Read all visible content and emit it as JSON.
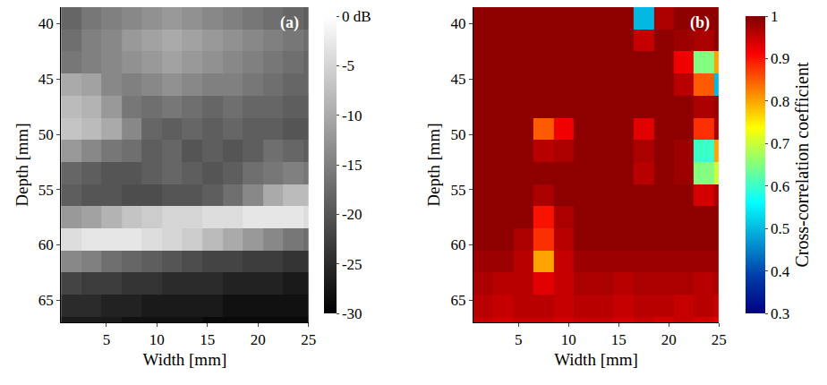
{
  "chart_data": [
    {
      "type": "heatmap",
      "color": "gray",
      "annotations": [
        "(a)"
      ],
      "x_label": "Width [mm]",
      "y_label": "Depth [mm]",
      "xlim": [
        0.5,
        25
      ],
      "ylim": [
        67,
        38.5
      ],
      "xticks": [
        5,
        10,
        15,
        20,
        25
      ],
      "yticks": [
        40,
        45,
        50,
        55,
        60,
        65
      ],
      "x": [
        0.5,
        2.5,
        4.5,
        6.5,
        8.5,
        10.5,
        12.5,
        14.5,
        16.5,
        18.5,
        20.5,
        22.5,
        24.5,
        25
      ],
      "y": [
        38.5,
        40.5,
        42.5,
        44.5,
        46.5,
        48.5,
        50.5,
        52.5,
        54.5,
        56.5,
        58.5,
        60.5,
        62.5,
        64.5,
        66.5,
        67
      ],
      "z": [
        [
          -18,
          -16,
          -15,
          -14,
          -13,
          -12,
          -13,
          -14,
          -15,
          -16,
          -17,
          -18,
          -19
        ],
        [
          -17,
          -15,
          -14,
          -12,
          -11,
          -10,
          -11,
          -12,
          -13,
          -14,
          -15,
          -16,
          -17
        ],
        [
          -16,
          -15,
          -14,
          -13,
          -12,
          -11,
          -12,
          -13,
          -14,
          -15,
          -16,
          -17,
          -18
        ],
        [
          -10,
          -11,
          -14,
          -15,
          -14,
          -13,
          -14,
          -15,
          -15,
          -16,
          -17,
          -18,
          -18
        ],
        [
          -8,
          -9,
          -12,
          -16,
          -17,
          -16,
          -17,
          -18,
          -17,
          -18,
          -18,
          -19,
          -19
        ],
        [
          -7,
          -8,
          -10,
          -14,
          -18,
          -19,
          -18,
          -19,
          -18,
          -19,
          -19,
          -20,
          -20
        ],
        [
          -12,
          -14,
          -16,
          -17,
          -19,
          -18,
          -20,
          -19,
          -20,
          -19,
          -17,
          -18,
          -19
        ],
        [
          -18,
          -19,
          -20,
          -20,
          -19,
          -18,
          -19,
          -20,
          -19,
          -17,
          -16,
          -15,
          -16
        ],
        [
          -19,
          -20,
          -20,
          -21,
          -21,
          -20,
          -20,
          -19,
          -17,
          -14,
          -10,
          -8,
          -8
        ],
        [
          -12,
          -11,
          -9,
          -7,
          -6,
          -5,
          -5,
          -4,
          -4,
          -3,
          -3,
          -3,
          -4
        ],
        [
          -4,
          -3,
          -3,
          -3,
          -4,
          -5,
          -6,
          -8,
          -10,
          -12,
          -14,
          -16,
          -17
        ],
        [
          -14,
          -15,
          -17,
          -18,
          -19,
          -20,
          -21,
          -22,
          -22,
          -23,
          -23,
          -24,
          -24
        ],
        [
          -22,
          -23,
          -23,
          -24,
          -24,
          -25,
          -25,
          -25,
          -26,
          -26,
          -26,
          -27,
          -27
        ],
        [
          -25,
          -25,
          -26,
          -26,
          -27,
          -27,
          -27,
          -27,
          -28,
          -28,
          -28,
          -28,
          -28
        ],
        [
          -27,
          -27,
          -27,
          -28,
          -28,
          -28,
          -28,
          -29,
          -29,
          -29,
          -29,
          -29,
          -29
        ]
      ],
      "colorbar": {
        "range": [
          -30,
          0
        ],
        "ticks": [
          {
            "value": 0,
            "label": "0 dB"
          },
          -5,
          -10,
          -15,
          -20,
          -25,
          -30
        ]
      }
    },
    {
      "type": "heatmap",
      "color": "jet",
      "annotations": [
        "(b)"
      ],
      "x_label": "Width [mm]",
      "y_label": "Depth [mm]",
      "xlim": [
        0.5,
        25
      ],
      "ylim": [
        67,
        38.5
      ],
      "xticks": [
        5,
        10,
        15,
        20,
        25
      ],
      "yticks": [
        40,
        45,
        50,
        55,
        60,
        65
      ],
      "x": [
        0.5,
        2.5,
        4.5,
        6.5,
        8.5,
        10.5,
        12.5,
        14.5,
        16.5,
        18.5,
        20.5,
        22.5,
        24.5,
        25
      ],
      "y": [
        38.5,
        40.5,
        42.5,
        44.5,
        46.5,
        48.5,
        50.5,
        52.5,
        54.5,
        56.5,
        58.5,
        60.5,
        62.5,
        64.5,
        66.5,
        67
      ],
      "z": [
        [
          0.99,
          0.99,
          0.99,
          0.99,
          0.99,
          0.99,
          0.99,
          0.99,
          0.5,
          0.97,
          0.99,
          0.99,
          0.99
        ],
        [
          0.99,
          0.99,
          0.99,
          0.99,
          0.99,
          0.99,
          0.99,
          0.99,
          0.95,
          0.99,
          0.98,
          0.97,
          0.99
        ],
        [
          0.99,
          0.99,
          0.99,
          0.99,
          0.99,
          0.99,
          0.99,
          0.99,
          0.99,
          0.99,
          0.92,
          0.65,
          0.8
        ],
        [
          0.99,
          0.99,
          0.99,
          0.99,
          0.99,
          0.99,
          0.99,
          0.99,
          0.99,
          0.99,
          0.96,
          0.85,
          0.5
        ],
        [
          0.99,
          0.99,
          0.99,
          0.99,
          0.99,
          0.99,
          0.99,
          0.99,
          0.99,
          0.99,
          0.99,
          0.97,
          0.98
        ],
        [
          0.99,
          0.99,
          0.99,
          0.85,
          0.92,
          0.99,
          0.99,
          0.99,
          0.93,
          0.99,
          0.99,
          0.88,
          0.97
        ],
        [
          0.99,
          0.99,
          0.99,
          0.96,
          0.97,
          0.99,
          0.99,
          0.99,
          0.97,
          0.99,
          0.98,
          0.6,
          0.8
        ],
        [
          0.99,
          0.99,
          0.99,
          0.99,
          0.99,
          0.99,
          0.99,
          0.99,
          0.96,
          0.99,
          0.98,
          0.65,
          0.7
        ],
        [
          0.99,
          0.99,
          0.99,
          0.97,
          0.99,
          0.99,
          0.99,
          0.99,
          0.99,
          0.99,
          0.99,
          0.94,
          0.97
        ],
        [
          0.99,
          0.99,
          0.99,
          0.9,
          0.97,
          0.99,
          0.99,
          0.99,
          0.99,
          0.99,
          0.99,
          0.99,
          0.99
        ],
        [
          0.99,
          0.99,
          0.97,
          0.88,
          0.96,
          0.99,
          0.99,
          0.99,
          0.99,
          0.99,
          0.99,
          0.99,
          0.99
        ],
        [
          0.98,
          0.98,
          0.96,
          0.8,
          0.95,
          0.98,
          0.98,
          0.98,
          0.98,
          0.98,
          0.98,
          0.98,
          0.98
        ],
        [
          0.97,
          0.96,
          0.96,
          0.93,
          0.95,
          0.97,
          0.97,
          0.96,
          0.97,
          0.97,
          0.97,
          0.96,
          0.97
        ],
        [
          0.96,
          0.95,
          0.96,
          0.96,
          0.95,
          0.96,
          0.96,
          0.95,
          0.96,
          0.96,
          0.95,
          0.96,
          0.95
        ],
        [
          0.95,
          0.94,
          0.95,
          0.95,
          0.94,
          0.95,
          0.95,
          0.94,
          0.95,
          0.94,
          0.95,
          0.94,
          0.93
        ]
      ],
      "colorbar": {
        "range": [
          0.3,
          1
        ],
        "ticks": [
          0.3,
          0.4,
          0.5,
          0.6,
          0.7,
          0.8,
          0.9,
          1
        ],
        "title": "Cross-correlation coefficient"
      }
    }
  ]
}
